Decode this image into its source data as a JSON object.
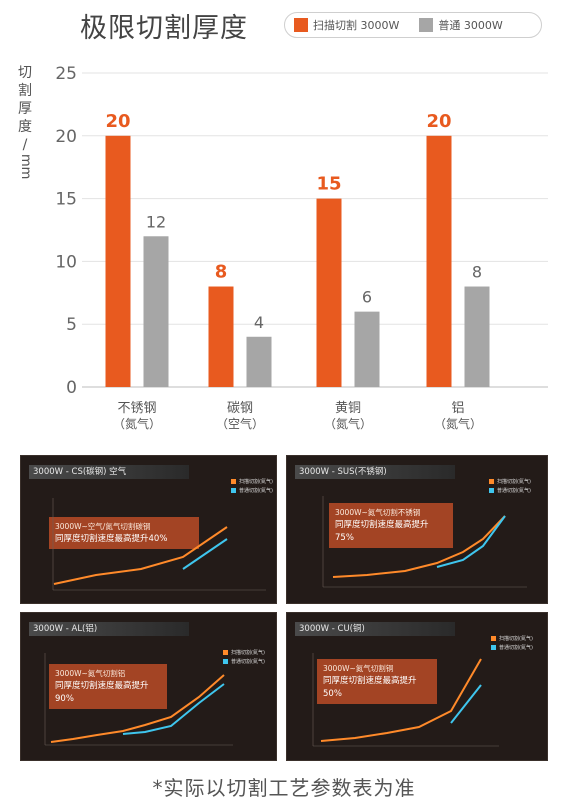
{
  "title": "极限切割厚度",
  "legend": [
    {
      "label": "扫描切割 3000W",
      "color": "#e85a1f"
    },
    {
      "label": "普通 3000W",
      "color": "#a6a6a6"
    }
  ],
  "ylabel_chars": [
    "切",
    "割",
    "厚",
    "度",
    "/"
  ],
  "ylabel_unit": "mm",
  "chart_data": {
    "type": "bar",
    "categories": [
      "不锈钢",
      "碳钢",
      "黄铜",
      "铝"
    ],
    "category_sub": [
      "（氮气）",
      "（空气）",
      "（氮气）",
      "（氮气）"
    ],
    "series": [
      {
        "name": "扫描切割 3000W",
        "values": [
          20,
          8,
          15,
          20
        ],
        "color": "#e85a1f"
      },
      {
        "name": "普通 3000W",
        "values": [
          12,
          4,
          6,
          8
        ],
        "color": "#a6a6a6"
      }
    ],
    "ylim": [
      0,
      25
    ],
    "yticks": [
      0,
      5,
      10,
      15,
      20,
      25
    ],
    "ylabel": "切割厚度/mm",
    "grid": true,
    "legend_position": "top-right"
  },
  "panels": [
    {
      "title": "3000W - CS(碳钢) 空气",
      "box_line1": "3000W~空气/氮气切割碳钢",
      "box_line2": "同厚度切割速度最高提升40%",
      "legend1": "扫描切割(氮气)",
      "legend2": "普通切割(氮气)",
      "axis_unit": "m/min"
    },
    {
      "title": "3000W - SUS(不锈钢)",
      "box_line1": "3000W~氮气切割不锈钢",
      "box_line2": "同厚度切割速度最高提升75%",
      "legend1": "扫描切割(氮气)",
      "legend2": "普通切割(氮气)",
      "axis_unit": "m/min"
    },
    {
      "title": "3000W - AL(铝)",
      "box_line1": "3000W~氮气切割铝",
      "box_line2": "同厚度切割速度最高提升90%",
      "legend1": "扫描切割(氮气)",
      "legend2": "普通切割(氮气)",
      "axis_unit": "m/min"
    },
    {
      "title": "3000W - CU(铜)",
      "box_line1": "3000W~氮气切割铜",
      "box_line2": "同厚度切割速度最高提升50%",
      "legend1": "扫描切割(氮气)",
      "legend2": "普通切割(氮气)",
      "axis_unit": "m/min"
    }
  ],
  "footer": "*实际以切割工艺参数表为准"
}
